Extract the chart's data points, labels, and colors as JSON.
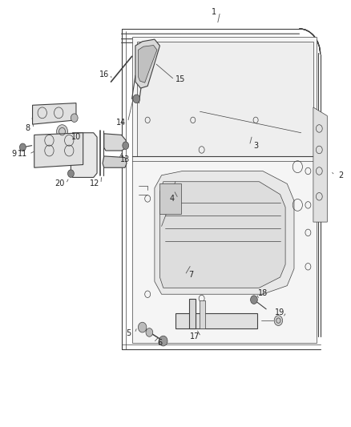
{
  "background_color": "#ffffff",
  "figsize": [
    4.38,
    5.33
  ],
  "dpi": 100,
  "line_color": "#404040",
  "label_fontsize": 7.0,
  "label_color": "#222222"
}
